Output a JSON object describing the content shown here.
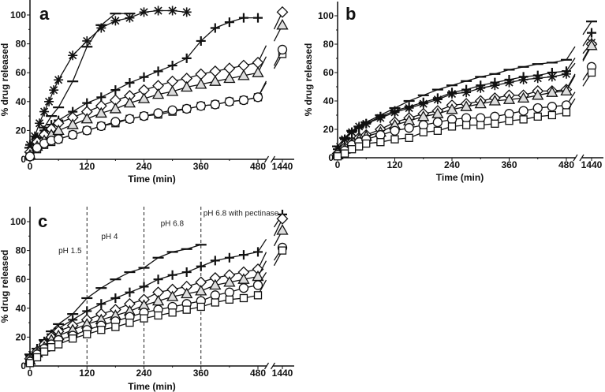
{
  "chart_data": [
    {
      "type": "line",
      "panel_label": "a",
      "xlabel": "Time (min)",
      "ylabel": "% drug released",
      "xticks": [
        0,
        120,
        240,
        360,
        480,
        1440
      ],
      "yticks": [
        0,
        20,
        40,
        60,
        80,
        100
      ],
      "ylim": [
        0,
        110
      ],
      "axis_break": [
        480,
        1440
      ],
      "series": [
        {
          "marker": "asterisk",
          "x": [
            0,
            10,
            20,
            30,
            40,
            50,
            60,
            90,
            120,
            150,
            180,
            210,
            240,
            270,
            300,
            330
          ],
          "y": [
            10,
            16,
            25,
            33,
            40,
            48,
            55,
            72,
            82,
            91,
            96,
            98,
            102,
            103,
            103,
            102
          ]
        },
        {
          "marker": "dash",
          "x": [
            0,
            15,
            30,
            45,
            60,
            90,
            120,
            150,
            180,
            210
          ],
          "y": [
            8,
            15,
            22,
            30,
            36,
            54,
            78,
            93,
            101,
            101
          ]
        },
        {
          "marker": "plus",
          "x": [
            0,
            15,
            30,
            45,
            60,
            90,
            120,
            150,
            180,
            210,
            240,
            270,
            300,
            330,
            360,
            390,
            420,
            450,
            480
          ],
          "y": [
            10,
            15,
            20,
            24,
            27,
            33,
            39,
            43,
            48,
            53,
            57,
            61,
            65,
            70,
            82,
            91,
            95,
            98,
            98
          ]
        },
        {
          "marker": "diamond",
          "x": [
            0,
            15,
            30,
            45,
            60,
            90,
            120,
            150,
            180,
            210,
            240,
            270,
            300,
            330,
            360,
            390,
            420,
            450,
            480,
            1440
          ],
          "y": [
            5,
            12,
            17,
            21,
            25,
            29,
            33,
            37,
            41,
            44,
            48,
            51,
            54,
            56,
            59,
            61,
            63,
            65,
            67,
            102
          ]
        },
        {
          "marker": "triangle",
          "x": [
            0,
            15,
            30,
            45,
            60,
            90,
            120,
            150,
            180,
            210,
            240,
            270,
            300,
            330,
            360,
            390,
            420,
            450,
            480,
            1440
          ],
          "y": [
            3,
            9,
            13,
            17,
            20,
            24,
            28,
            32,
            35,
            39,
            42,
            45,
            47,
            50,
            52,
            54,
            56,
            58,
            60,
            93
          ]
        },
        {
          "marker": "square",
          "x": [
            0,
            15,
            30,
            45,
            60,
            90,
            120,
            150,
            180,
            210,
            240,
            270,
            300,
            330,
            360,
            390,
            420,
            450,
            480,
            1440
          ],
          "y": [
            2,
            7,
            10,
            12,
            14,
            17,
            20,
            23,
            25,
            28,
            30,
            31,
            33,
            35,
            37,
            38,
            40,
            41,
            43,
            73
          ]
        },
        {
          "marker": "circle",
          "x": [
            0,
            15,
            30,
            45,
            60,
            90,
            120,
            150,
            180,
            210,
            240,
            270,
            300,
            330,
            360,
            390,
            420,
            450,
            480,
            1440
          ],
          "y": [
            2,
            8,
            11,
            13,
            14,
            17,
            20,
            23,
            26,
            28,
            30,
            32,
            34,
            35,
            37,
            38,
            40,
            41,
            43,
            76
          ]
        }
      ]
    },
    {
      "type": "line",
      "panel_label": "b",
      "xlabel": "Time (min)",
      "ylabel": "% drug released",
      "xticks": [
        0,
        120,
        240,
        360,
        480,
        1440
      ],
      "yticks": [
        0,
        20,
        40,
        60,
        80,
        100
      ],
      "ylim": [
        0,
        110
      ],
      "axis_break": [
        480,
        1440
      ],
      "series": [
        {
          "marker": "dash",
          "x": [
            0,
            15,
            30,
            45,
            60,
            90,
            120,
            150,
            180,
            210,
            240,
            270,
            300,
            330,
            360,
            390,
            420,
            450,
            480,
            1440
          ],
          "y": [
            8,
            14,
            19,
            22,
            25,
            30,
            35,
            40,
            44,
            48,
            51,
            54,
            57,
            59,
            62,
            64,
            66,
            67,
            69,
            96
          ]
        },
        {
          "marker": "plus",
          "x": [
            0,
            15,
            30,
            45,
            60,
            90,
            120,
            150,
            180,
            210,
            240,
            270,
            300,
            330,
            360,
            390,
            420,
            450,
            480,
            1440
          ],
          "y": [
            6,
            13,
            18,
            21,
            24,
            29,
            33,
            36,
            39,
            42,
            46,
            48,
            51,
            53,
            55,
            57,
            58,
            60,
            61,
            88
          ]
        },
        {
          "marker": "asterisk",
          "x": [
            0,
            15,
            30,
            45,
            60,
            90,
            120,
            150,
            180,
            210,
            240,
            270,
            300,
            330,
            360,
            390,
            420,
            450,
            480,
            1440
          ],
          "y": [
            6,
            13,
            18,
            22,
            24,
            28,
            32,
            35,
            38,
            41,
            45,
            46,
            49,
            51,
            53,
            55,
            56,
            57,
            59,
            81
          ]
        },
        {
          "marker": "diamond",
          "x": [
            0,
            15,
            30,
            45,
            60,
            90,
            120,
            150,
            180,
            210,
            240,
            270,
            300,
            330,
            360,
            390,
            420,
            450,
            480,
            1440
          ],
          "y": [
            3,
            7,
            11,
            14,
            16,
            20,
            25,
            28,
            31,
            33,
            37,
            38,
            40,
            42,
            44,
            44,
            47,
            47,
            48,
            80
          ]
        },
        {
          "marker": "triangle",
          "x": [
            0,
            15,
            30,
            45,
            60,
            90,
            120,
            150,
            180,
            210,
            240,
            270,
            300,
            330,
            360,
            390,
            420,
            450,
            480,
            1440
          ],
          "y": [
            2,
            6,
            10,
            13,
            15,
            18,
            23,
            26,
            29,
            31,
            34,
            36,
            38,
            40,
            41,
            42,
            44,
            46,
            47,
            79
          ]
        },
        {
          "marker": "circle",
          "x": [
            0,
            15,
            30,
            45,
            60,
            90,
            120,
            150,
            180,
            210,
            240,
            270,
            300,
            330,
            360,
            390,
            420,
            450,
            480,
            1440
          ],
          "y": [
            2,
            5,
            9,
            11,
            13,
            16,
            19,
            21,
            23,
            25,
            27,
            28,
            28,
            29,
            31,
            33,
            35,
            36,
            37,
            64
          ]
        },
        {
          "marker": "square",
          "x": [
            0,
            15,
            30,
            45,
            60,
            90,
            120,
            150,
            180,
            210,
            240,
            270,
            300,
            330,
            360,
            390,
            420,
            450,
            480,
            1440
          ],
          "y": [
            1,
            3,
            6,
            8,
            10,
            11,
            13,
            14,
            18,
            19,
            22,
            23,
            23,
            24,
            26,
            27,
            29,
            30,
            32,
            60
          ]
        }
      ]
    },
    {
      "type": "line",
      "panel_label": "c",
      "xlabel": "Time (min)",
      "ylabel": "% drug released",
      "xticks": [
        0,
        120,
        240,
        360,
        480,
        1440
      ],
      "yticks": [
        0,
        20,
        40,
        60,
        80,
        100
      ],
      "ylim": [
        0,
        110
      ],
      "axis_break": [
        480,
        1440
      ],
      "phase_lines": [
        120,
        240,
        360
      ],
      "annotations": [
        {
          "text": "pH 1.5",
          "x": 60,
          "y": 77
        },
        {
          "text": "pH 4",
          "x": 150,
          "y": 87
        },
        {
          "text": "pH 6.8",
          "x": 275,
          "y": 96
        },
        {
          "text": "pH 6.8 with pectinase",
          "x": 365,
          "y": 103
        }
      ],
      "series": [
        {
          "marker": "dash",
          "x": [
            0,
            15,
            30,
            45,
            60,
            90,
            120,
            150,
            180,
            210,
            240,
            270,
            300,
            330,
            360
          ],
          "y": [
            8,
            12,
            18,
            24,
            29,
            36,
            47,
            54,
            60,
            65,
            68,
            75,
            79,
            81,
            84
          ]
        },
        {
          "marker": "plus",
          "x": [
            0,
            15,
            30,
            45,
            60,
            90,
            120,
            150,
            180,
            210,
            240,
            270,
            300,
            330,
            360,
            390,
            420,
            450,
            480,
            1440
          ],
          "y": [
            7,
            12,
            17,
            22,
            26,
            32,
            38,
            43,
            47,
            51,
            55,
            60,
            63,
            65,
            69,
            73,
            75,
            77,
            79,
            105
          ]
        },
        {
          "marker": "diamond",
          "x": [
            0,
            15,
            30,
            45,
            60,
            90,
            120,
            150,
            180,
            210,
            240,
            270,
            300,
            330,
            360,
            390,
            420,
            450,
            480,
            1440
          ],
          "y": [
            5,
            10,
            15,
            20,
            24,
            28,
            32,
            36,
            39,
            43,
            46,
            51,
            53,
            55,
            58,
            61,
            63,
            65,
            67,
            102
          ]
        },
        {
          "marker": "triangle",
          "x": [
            0,
            15,
            30,
            45,
            60,
            90,
            120,
            150,
            180,
            210,
            240,
            270,
            300,
            330,
            360,
            390,
            420,
            450,
            480,
            1440
          ],
          "y": [
            4,
            9,
            13,
            18,
            21,
            25,
            29,
            32,
            35,
            38,
            42,
            45,
            48,
            50,
            52,
            56,
            58,
            60,
            62,
            94
          ]
        },
        {
          "marker": "circle",
          "x": [
            0,
            15,
            30,
            45,
            60,
            90,
            120,
            150,
            180,
            210,
            240,
            270,
            300,
            330,
            360,
            390,
            420,
            450,
            480,
            1440
          ],
          "y": [
            3,
            8,
            12,
            15,
            18,
            21,
            25,
            28,
            31,
            34,
            37,
            39,
            41,
            43,
            45,
            49,
            51,
            54,
            56,
            82
          ]
        },
        {
          "marker": "square",
          "x": [
            0,
            15,
            30,
            45,
            60,
            90,
            120,
            150,
            180,
            210,
            240,
            270,
            300,
            330,
            360,
            390,
            420,
            450,
            480,
            1440
          ],
          "y": [
            2,
            6,
            10,
            13,
            15,
            19,
            22,
            25,
            27,
            30,
            33,
            35,
            37,
            39,
            41,
            44,
            46,
            47,
            49,
            80
          ]
        }
      ]
    }
  ]
}
